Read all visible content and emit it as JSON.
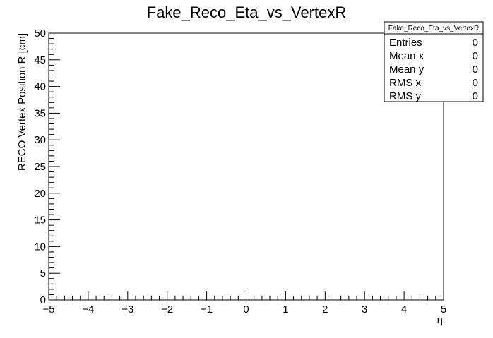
{
  "chart_data": {
    "type": "heatmap",
    "title": "Fake_Reco_Eta_vs_VertexR",
    "xlabel": "η",
    "ylabel": "RECO Vertex Position R [cm]",
    "xlim": [
      -5,
      5
    ],
    "ylim": [
      0,
      50
    ],
    "x_ticks": [
      "−5",
      "−4",
      "−3",
      "−2",
      "−1",
      "0",
      "1",
      "2",
      "3",
      "4",
      "5"
    ],
    "y_ticks": [
      "0",
      "5",
      "10",
      "15",
      "20",
      "25",
      "30",
      "35",
      "40",
      "45",
      "50"
    ],
    "values": [],
    "grid": false,
    "stats_box": {
      "name": "Fake_Reco_Eta_vs_VertexR",
      "rows": [
        {
          "label": "Entries",
          "value": "0"
        },
        {
          "label": "Mean x",
          "value": "0"
        },
        {
          "label": "Mean y",
          "value": "0"
        },
        {
          "label": "RMS x",
          "value": "0"
        },
        {
          "label": "RMS y",
          "value": "0"
        }
      ]
    }
  }
}
